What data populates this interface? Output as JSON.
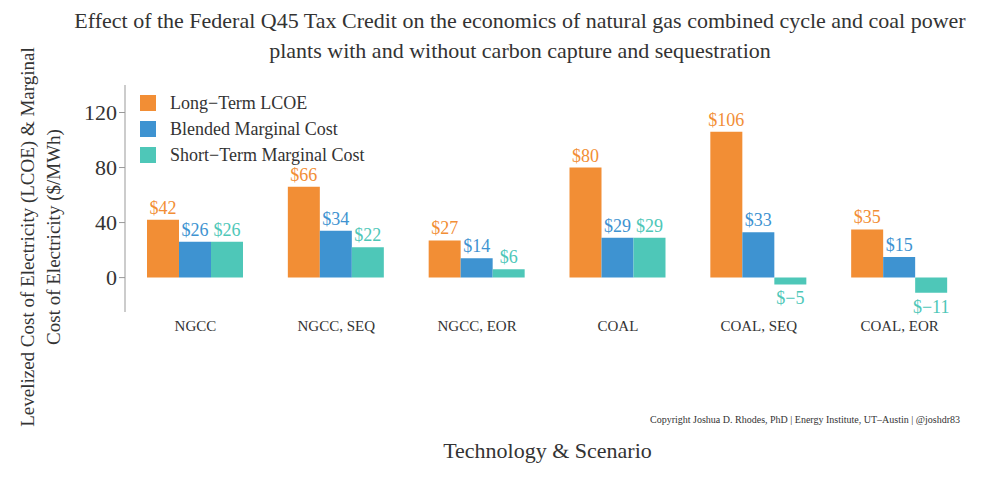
{
  "chart_data": {
    "type": "bar",
    "title": "Effect of the Federal Q45 Tax Credit on the economics of natural gas combined cycle and coal power plants with and without carbon capture and sequestration",
    "x_label": "Technology & Scenario",
    "y_label": "Levelized Cost of Electricity (LCOE) & Marginal Cost of Electricity ($/MWh)",
    "annotations": [
      "Copyright Joshua D. Rhodes, PhD | Energy Institute, UT–Austin | @joshdr83"
    ],
    "categories": [
      "NGCC",
      "NGCC, SEQ",
      "NGCC, EOR",
      "COAL",
      "COAL, SEQ",
      "COAL, EOR"
    ],
    "series": [
      {
        "name": "Long−Term LCOE",
        "color": "#f28e35",
        "values": [
          42,
          66,
          27,
          80,
          106,
          35
        ],
        "value_labels": [
          "$42",
          "$66",
          "$27",
          "$80",
          "$106",
          "$35"
        ]
      },
      {
        "name": "Blended Marginal Cost",
        "color": "#3e93d1",
        "values": [
          26,
          34,
          14,
          29,
          33,
          15
        ],
        "value_labels": [
          "$26",
          "$34",
          "$14",
          "$29",
          "$33",
          "$15"
        ]
      },
      {
        "name": "Short−Term Marginal Cost",
        "color": "#4ec7b8",
        "values": [
          26,
          22,
          6,
          29,
          -5,
          -11
        ],
        "value_labels": [
          "$26",
          "$22",
          "$6",
          "$29",
          "$−5",
          "$−11"
        ]
      }
    ],
    "ylim": [
      -25,
      140
    ],
    "yticks": [
      0,
      40,
      80,
      120
    ],
    "grid": false,
    "legend": "upper left",
    "data_labels": true
  }
}
